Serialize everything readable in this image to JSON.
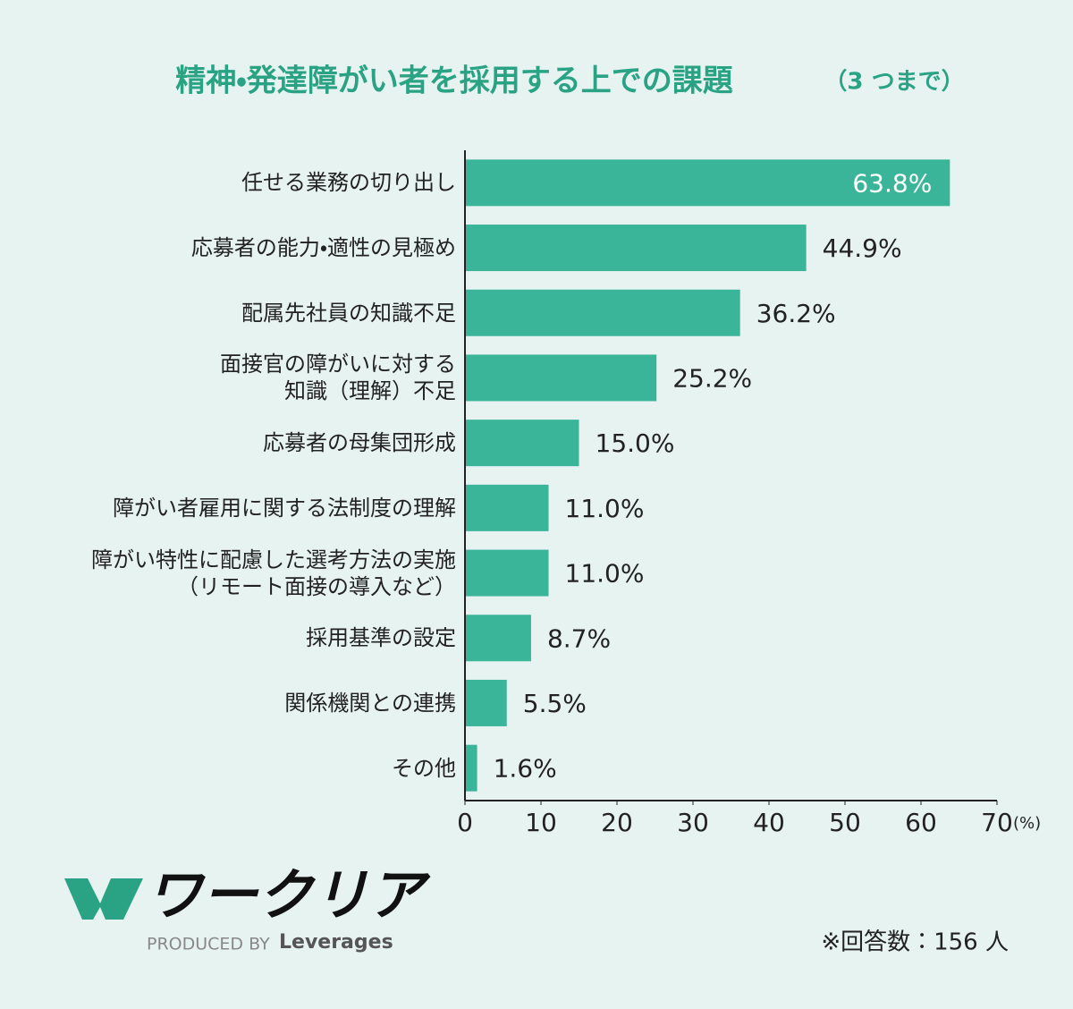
{
  "chart_data": {
    "type": "bar",
    "orientation": "horizontal",
    "title": "精神・発達障がい者を採用する上での課題",
    "title_note": "（3 つまで）",
    "categories": [
      "任せる業務の切り出し",
      "応募者の能力・適性の見極め",
      "配属先社員の知識不足",
      "面接官の障がいに対する\n知識（理解）不足",
      "応募者の母集団形成",
      "障がい者雇用に関する法制度の理解",
      "障がい特性に配慮した選考方法の実施\n（リモート面接の導入など）",
      "採用基準の設定",
      "関係機関との連携",
      "その他"
    ],
    "values": [
      63.8,
      44.9,
      36.2,
      25.2,
      15.0,
      11.0,
      11.0,
      8.7,
      5.5,
      1.6
    ],
    "value_labels": [
      "63.8%",
      "44.9%",
      "36.2%",
      "25.2%",
      "15.0%",
      "11.0%",
      "11.0%",
      "8.7%",
      "5.5%",
      "1.6%"
    ],
    "color": "#3bb59a",
    "xlim": [
      0,
      70
    ],
    "xticks": [
      0,
      10,
      20,
      30,
      40,
      50,
      60,
      70
    ],
    "x_unit": "(%)",
    "grid": false
  },
  "footer": {
    "logo": "ワークリア",
    "produced_by": "PRODUCED BY",
    "brand": "Leverages",
    "note": "※回答数：156 人"
  }
}
